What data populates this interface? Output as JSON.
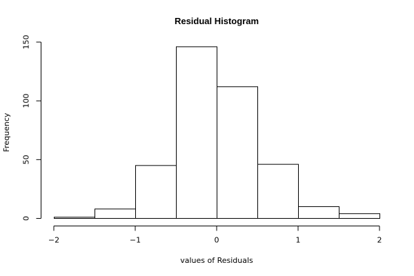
{
  "chart_data": {
    "type": "bar",
    "title": "Residual Histogram",
    "xlabel": "values of Residuals",
    "ylabel": "Frequency",
    "bins": [
      {
        "from": -2.0,
        "to": -1.5,
        "count": 1
      },
      {
        "from": -1.5,
        "to": -1.0,
        "count": 8
      },
      {
        "from": -1.0,
        "to": -0.5,
        "count": 45
      },
      {
        "from": -0.5,
        "to": 0.0,
        "count": 146
      },
      {
        "from": 0.0,
        "to": 0.5,
        "count": 112
      },
      {
        "from": 0.5,
        "to": 1.0,
        "count": 46
      },
      {
        "from": 1.0,
        "to": 1.5,
        "count": 10
      },
      {
        "from": 1.5,
        "to": 2.0,
        "count": 4
      }
    ],
    "xlim": [
      -2,
      2
    ],
    "ylim": [
      0,
      150
    ],
    "x_ticks": [
      -2,
      -1,
      0,
      1,
      2
    ],
    "x_tick_labels": [
      "−2",
      "−1",
      "0",
      "1",
      "2"
    ],
    "y_ticks": [
      0,
      50,
      100,
      150
    ],
    "y_tick_labels": [
      "0",
      "50",
      "100",
      "150"
    ],
    "grid": false,
    "colors": {
      "bar_fill": "#ffffff",
      "bar_stroke": "#000000"
    }
  }
}
